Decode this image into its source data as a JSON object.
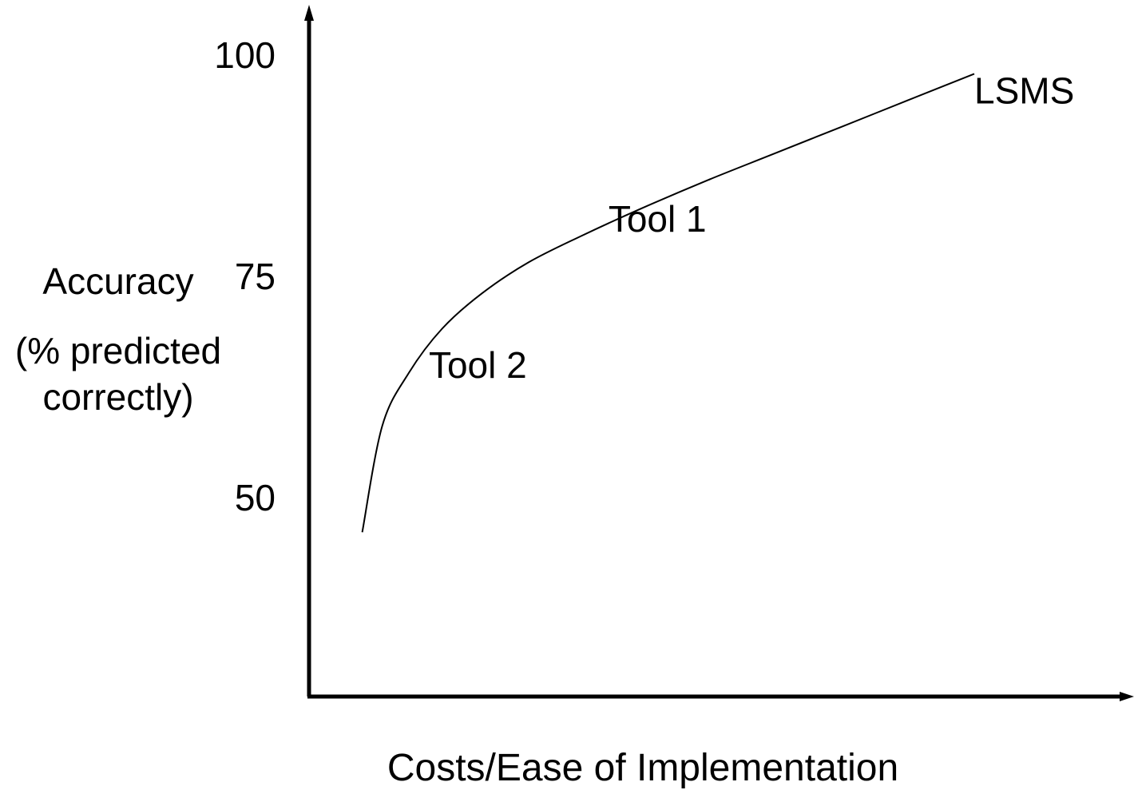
{
  "chart_data": {
    "type": "line",
    "title": "",
    "xlabel": "Costs/Ease of Implementation",
    "ylabel_lines": [
      "Accuracy",
      "(% predicted",
      "correctly)"
    ],
    "yticks": [
      100,
      75,
      50
    ],
    "ylim": [
      30,
      100
    ],
    "grid": false,
    "legend": "none",
    "x_axis_ticks": "none",
    "curve": {
      "x": [
        0.08,
        0.11,
        0.15,
        0.2,
        0.26,
        0.33,
        0.41,
        0.5,
        0.6,
        0.7,
        0.8,
        0.9,
        1.0
      ],
      "y": [
        46,
        58,
        64,
        69,
        73,
        76.5,
        79.5,
        82.6,
        85.8,
        88.8,
        91.8,
        94.8,
        97.8
      ]
    },
    "annotations": [
      {
        "text": "Tool 2",
        "x": 0.18,
        "y": 65
      },
      {
        "text": "Tool 1",
        "x": 0.45,
        "y": 81.5
      },
      {
        "text": "LSMS",
        "x": 1.0,
        "y": 96
      }
    ],
    "colors": {
      "axis": "#000000",
      "curve": "#000000",
      "text": "#000000"
    }
  }
}
